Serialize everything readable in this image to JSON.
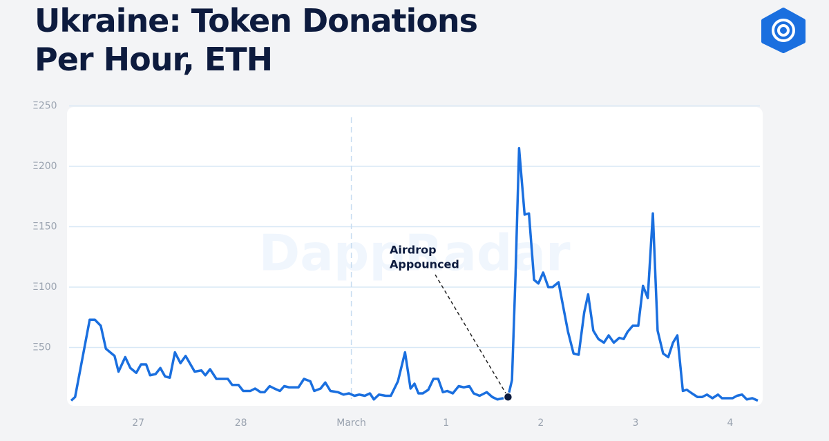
{
  "chart_data": {
    "type": "line",
    "title": "Ukraine: Token Donations Per Hour, ETH",
    "watermark": "DappRadar",
    "x": [
      0,
      1,
      4.7,
      6,
      7.5,
      8.8,
      11,
      12,
      13.7,
      15,
      16.5,
      17.7,
      19,
      20,
      21.4,
      22.6,
      23.8,
      25,
      26.3,
      27.7,
      29,
      31.3,
      33,
      34,
      35.2,
      36.8,
      39.7,
      40.8,
      42.4,
      43.6,
      45.4,
      46.6,
      48,
      49,
      50.3,
      51.5,
      52.9,
      54,
      55.2,
      57.6,
      59,
      60.6,
      61.6,
      63.2,
      64.4,
      65.7,
      67.6,
      69,
      70.4,
      71.8,
      73,
      74.4,
      75.7,
      76.7,
      78,
      79.7,
      81,
      82.8,
      84.6,
      86,
      87,
      88,
      89.1,
      90.5,
      91.8,
      93,
      94.2,
      95.3,
      96.7,
      98.2,
      99.5,
      100.9,
      102,
      103.5,
      105.3,
      106.7,
      108,
      109.5,
      110.7,
      111.7,
      112.6,
      113.5,
      114.9,
      116,
      117.3,
      118.4,
      119.6,
      120.9,
      122,
      123.5,
      124.9,
      125.9,
      127.3,
      128.6,
      130,
      131,
      132.3,
      133.6,
      135,
      136.2,
      137.5,
      138.9,
      140,
      141,
      142.3,
      143.7,
      144.9,
      146.1,
      147.4,
      148.6,
      150,
      151.3,
      152.5,
      153.6,
      155,
      156,
      157.3,
      158.7,
      159.9,
      161.1,
      162.5,
      163.9,
      164.9,
      166.4,
      167.6,
      168.7,
      170,
      171.2,
      172.6,
      174
    ],
    "series": [
      {
        "name": "Donations",
        "color": "#1a6fdf",
        "values": [
          6,
          9,
          73,
          73,
          68,
          49,
          43,
          30,
          42,
          33,
          29,
          36,
          36,
          27,
          28,
          33,
          26,
          25,
          46,
          37,
          43,
          30,
          31,
          27,
          32,
          24,
          24,
          19,
          19,
          14,
          14,
          16,
          13,
          13,
          18,
          16,
          14,
          18,
          17,
          17,
          24,
          22,
          14,
          16,
          21,
          14,
          13,
          11,
          12,
          10,
          11,
          10,
          12,
          7,
          11,
          10,
          10,
          22,
          46,
          16,
          20,
          12,
          12,
          15,
          24,
          24,
          13,
          14,
          12,
          18,
          17,
          18,
          12,
          10,
          13,
          9,
          7,
          8,
          9,
          23,
          110,
          215,
          160,
          161,
          106,
          103,
          112,
          100,
          100,
          104,
          80,
          63,
          45,
          44,
          79,
          94,
          64,
          57,
          54,
          60,
          54,
          58,
          57,
          63,
          68,
          68,
          101,
          91,
          161,
          64,
          45,
          42,
          54,
          60,
          14,
          15,
          12,
          9,
          9,
          11,
          8,
          11,
          8,
          8,
          8,
          10,
          11,
          7,
          8,
          6
        ]
      }
    ],
    "xlim": [
      0,
      174
    ],
    "xticks": [
      {
        "value": 17,
        "label": "27"
      },
      {
        "value": 43,
        "label": "28"
      },
      {
        "value": 71,
        "label": "March"
      },
      {
        "value": 95,
        "label": "1"
      },
      {
        "value": 119,
        "label": "2"
      },
      {
        "value": 143,
        "label": "3"
      },
      {
        "value": 167,
        "label": "4"
      }
    ],
    "ylim": [
      0,
      250
    ],
    "yticks": [
      {
        "value": 50,
        "label": "Ξ50"
      },
      {
        "value": 100,
        "label": "Ξ100"
      },
      {
        "value": 150,
        "label": "Ξ150"
      },
      {
        "value": 200,
        "label": "Ξ200"
      },
      {
        "value": 250,
        "label": "Ξ250"
      }
    ],
    "grid": true,
    "annotation": {
      "lines": [
        "Airdrop",
        "Appounced"
      ],
      "x": 110.7,
      "y": 9
    }
  }
}
